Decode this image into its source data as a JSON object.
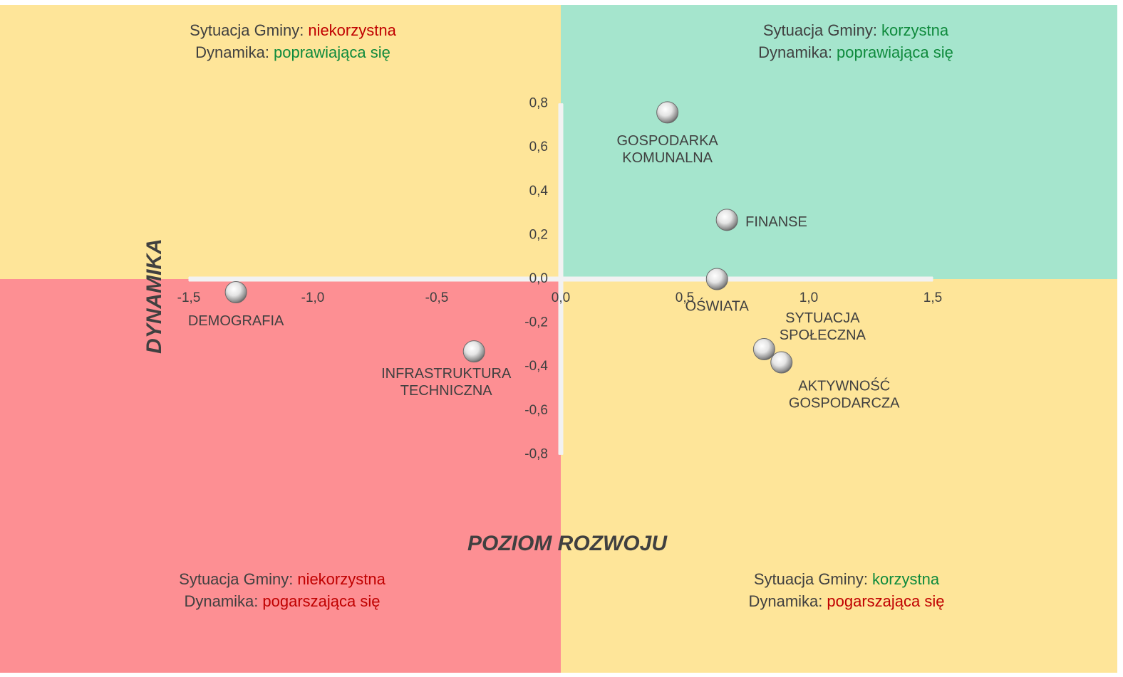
{
  "chart_data": {
    "type": "scatter",
    "x_label": "POZIOM ROZWOJU",
    "y_label": "DYNAMIKA",
    "x": [
      0.43,
      0.67,
      0.63,
      0.82,
      0.89,
      -1.31,
      -0.35
    ],
    "values": [
      0.76,
      0.27,
      0.0,
      -0.32,
      -0.38,
      -0.06,
      -0.33
    ],
    "point_labels": [
      [
        "GOSPODARKA",
        "KOMUNALNA"
      ],
      [
        "FINANSE"
      ],
      [
        "OŚWIATA"
      ],
      [
        "SYTUACJA",
        "SPOŁECZNA"
      ],
      [
        "AKTYWNOŚĆ",
        "GOSPODARCZA"
      ],
      [
        "DEMOGRAFIA"
      ],
      [
        "INFRASTRUKTURA",
        "TECHNICZNA"
      ]
    ],
    "xlim": [
      -1.5,
      1.5
    ],
    "ylim": [
      -0.8,
      0.8
    ],
    "xticks": [
      {
        "value": -1.5,
        "label": "-1,5"
      },
      {
        "value": -1.0,
        "label": "-1,0"
      },
      {
        "value": -0.5,
        "label": "-0,5"
      },
      {
        "value": 0,
        "label": "0,0"
      },
      {
        "value": 0.5,
        "label": "0,5"
      },
      {
        "value": 1.0,
        "label": "1,0"
      },
      {
        "value": 1.5,
        "label": "1,5"
      }
    ],
    "yticks": [
      {
        "value": -0.8,
        "label": "-0,8"
      },
      {
        "value": -0.6,
        "label": "-0,6"
      },
      {
        "value": -0.4,
        "label": "-0,4"
      },
      {
        "value": -0.2,
        "label": "-0,2"
      },
      {
        "value": 0,
        "label": "0,0"
      },
      {
        "value": 0.2,
        "label": "0,2"
      },
      {
        "value": 0.4,
        "label": "0,4"
      },
      {
        "value": 0.6,
        "label": "0,6"
      },
      {
        "value": 0.8,
        "label": "0,8"
      }
    ],
    "quadrants": [
      {
        "fill": "#fee599",
        "situation_label": "Sytuacja Gminy:",
        "situation": "niekorzystna",
        "situation_color": "#c00000",
        "dynamics_label": "Dynamika:",
        "dynamics": "poprawiająca się",
        "dynamics_color": "#0e8a3c"
      },
      {
        "fill": "#a5e5cd",
        "situation_label": "Sytuacja Gminy:",
        "situation": "korzystna",
        "situation_color": "#0e8a3c",
        "dynamics_label": "Dynamika:",
        "dynamics": "poprawiająca się",
        "dynamics_color": "#0e8a3c"
      },
      {
        "fill": "#fd8f93",
        "situation_label": "Sytuacja Gminy:",
        "situation": "niekorzystna",
        "situation_color": "#c00000",
        "dynamics_label": "Dynamika:",
        "dynamics": "pogarszająca się",
        "dynamics_color": "#c00000"
      },
      {
        "fill": "#fee599",
        "situation_label": "Sytuacja Gminy:",
        "situation": "korzystna",
        "situation_color": "#0e8a3c",
        "dynamics_label": "Dynamika:",
        "dynamics": "pogarszająca się",
        "dynamics_color": "#c00000"
      }
    ]
  }
}
